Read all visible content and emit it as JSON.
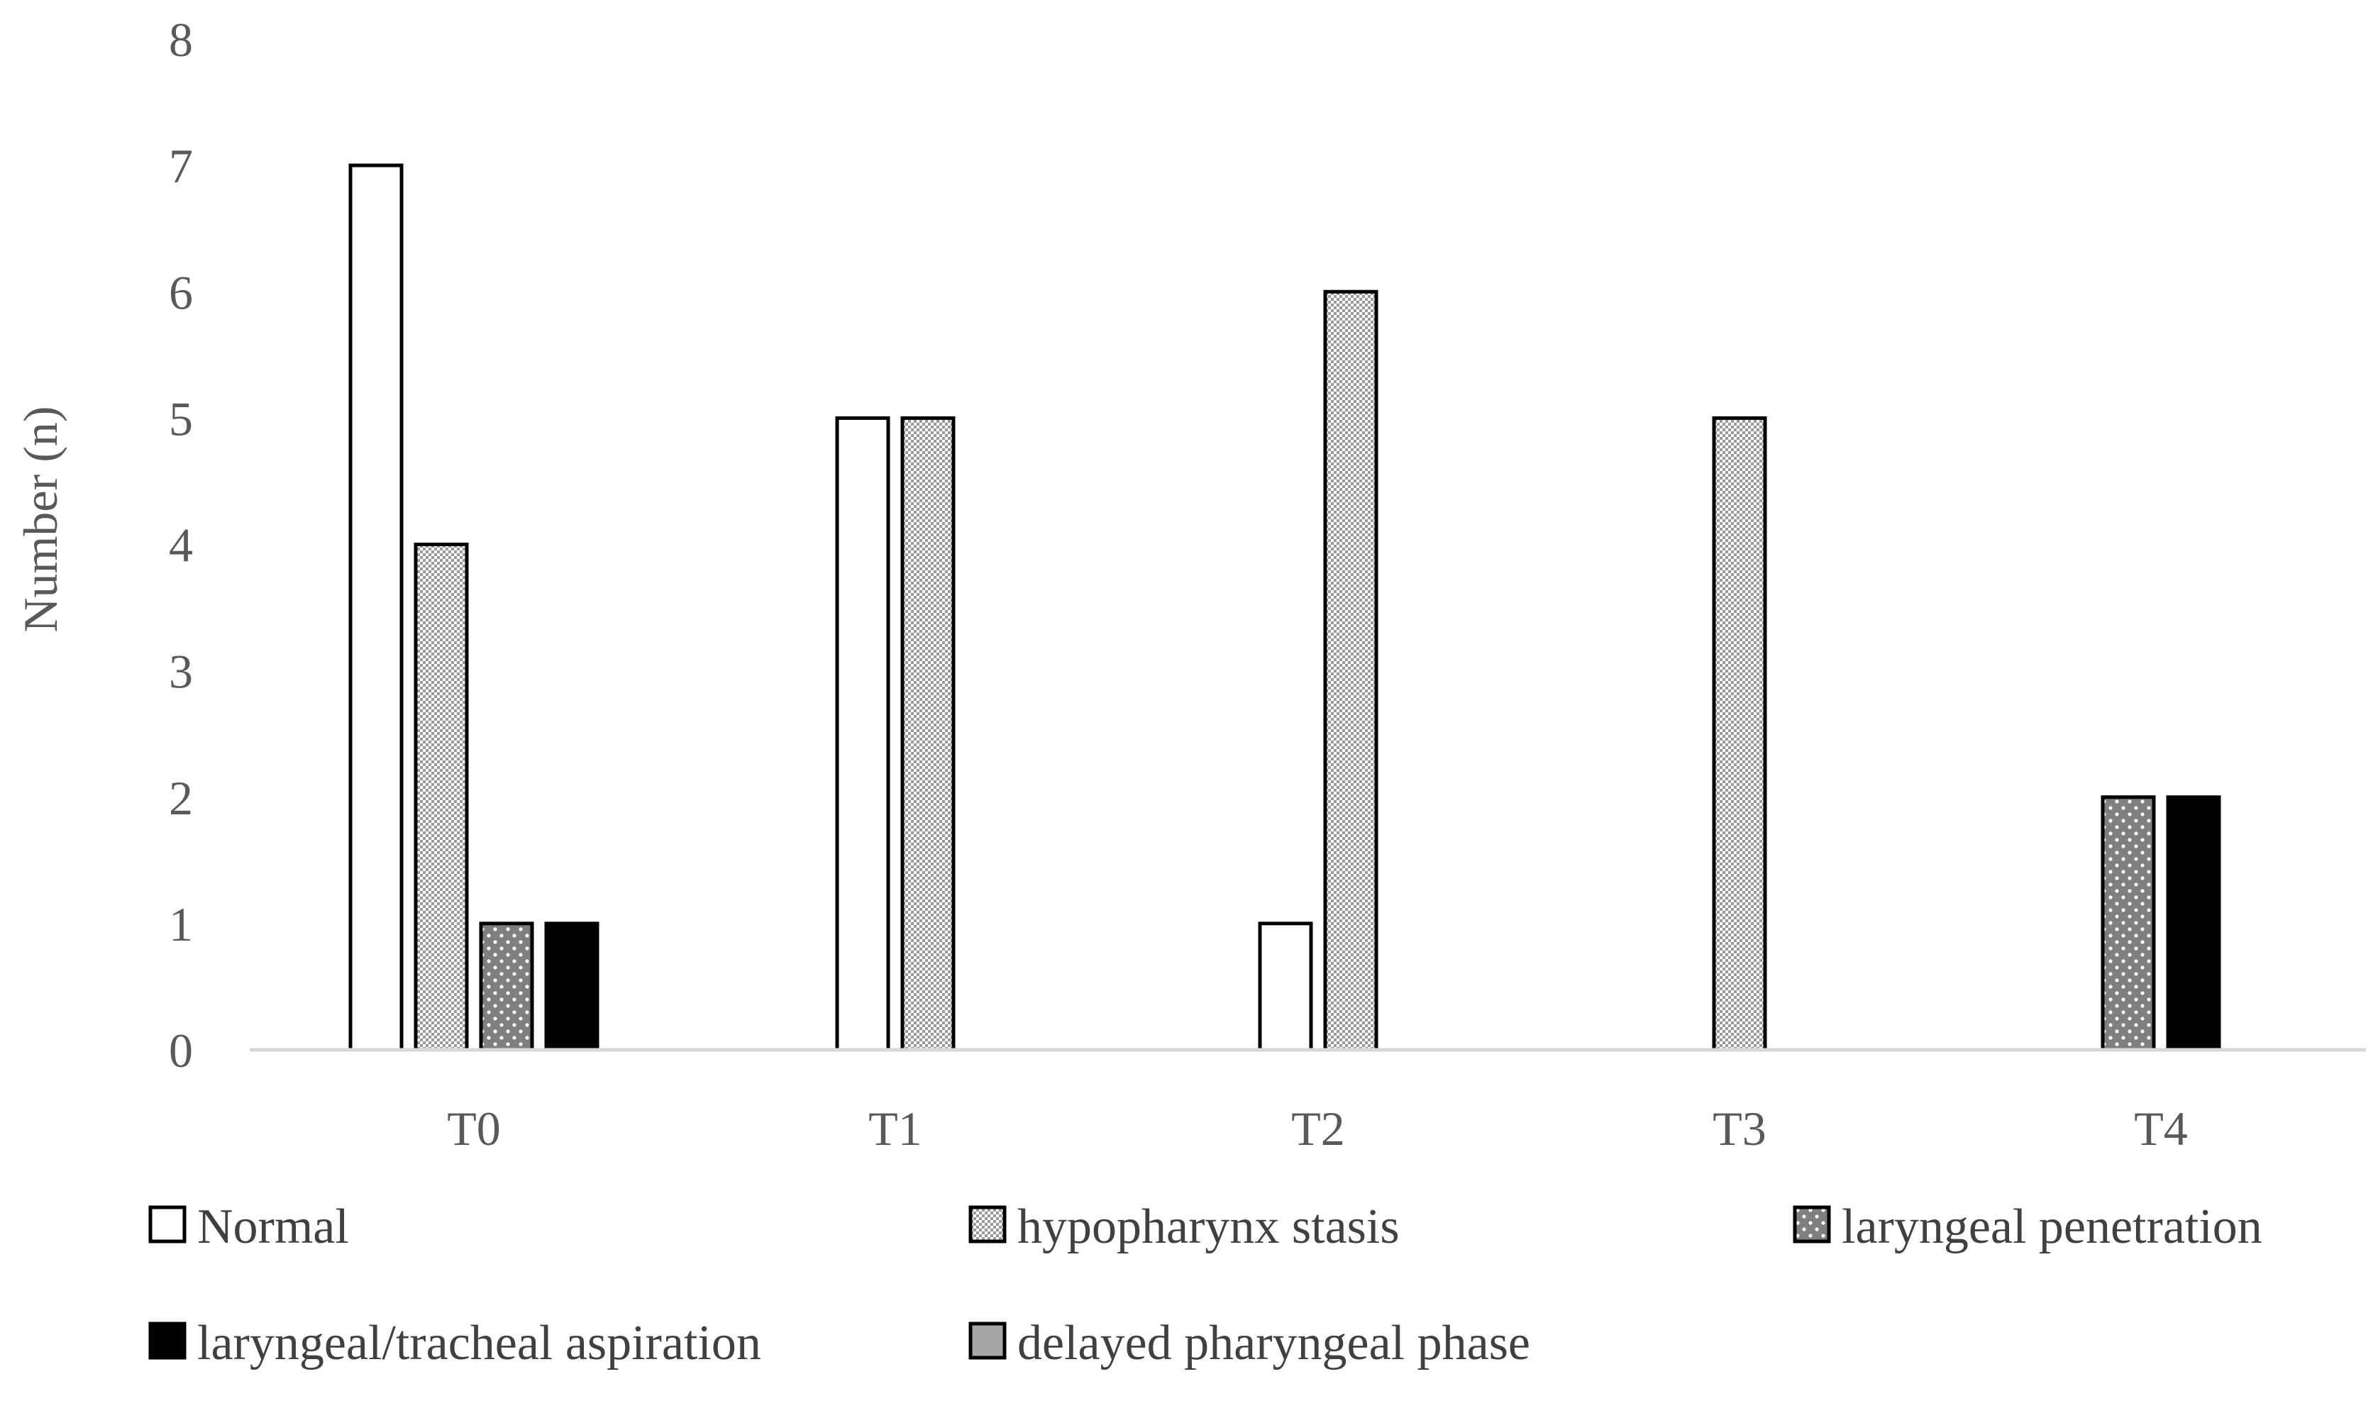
{
  "chart_data": {
    "type": "bar",
    "title": "",
    "xlabel": "",
    "ylabel": "Number (n)",
    "ylim": [
      0,
      8
    ],
    "yticks": [
      "0",
      "1",
      "2",
      "3",
      "4",
      "5",
      "6",
      "7",
      "8"
    ],
    "categories": [
      "T0",
      "T1",
      "T2",
      "T3",
      "T4"
    ],
    "grid": false,
    "legend_position": "bottom",
    "series": [
      {
        "name": "Normal",
        "values": [
          7,
          5,
          1,
          0,
          0
        ],
        "pattern": "white",
        "color": "#ffffff"
      },
      {
        "name": "hypopharynx stasis",
        "values": [
          4,
          5,
          6,
          5,
          0
        ],
        "pattern": "checker",
        "color": "#c8c8c8"
      },
      {
        "name": "laryngeal penetration",
        "values": [
          1,
          0,
          0,
          0,
          2
        ],
        "pattern": "dots",
        "color": "#7f7f7f"
      },
      {
        "name": "laryngeal/tracheal aspiration",
        "values": [
          1,
          0,
          0,
          0,
          2
        ],
        "pattern": "solid",
        "color": "#000000"
      },
      {
        "name": "delayed pharyngeal phase",
        "values": [
          0,
          0,
          0,
          0,
          0
        ],
        "pattern": "gray",
        "color": "#a6a6a6"
      }
    ]
  }
}
